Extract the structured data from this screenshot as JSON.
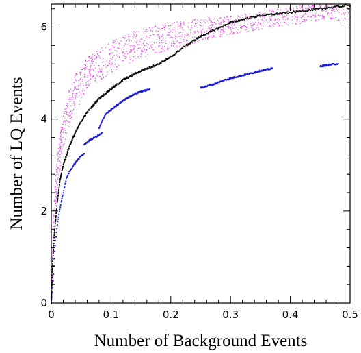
{
  "chart_data": {
    "type": "scatter",
    "title": "",
    "xlabel": "Number of Background Events",
    "ylabel": "Number of LQ Events",
    "xlim": [
      0,
      0.5
    ],
    "ylim": [
      0,
      6.5
    ],
    "x_ticks": [
      0,
      0.1,
      0.2,
      0.3,
      0.4,
      0.5
    ],
    "x_tick_labels": [
      "0",
      "0.1",
      "0.2",
      "0.3",
      "0.4",
      "0.5"
    ],
    "y_ticks": [
      0,
      2,
      4,
      6
    ],
    "y_tick_labels": [
      "0",
      "2",
      "4",
      "6"
    ],
    "grid": false,
    "legend": "none",
    "series": [
      {
        "color": "#e23be2",
        "style": "scattered dots (upper band)",
        "x": [
          0,
          0.002,
          0.005,
          0.01,
          0.015,
          0.02,
          0.03,
          0.04,
          0.05,
          0.06,
          0.07,
          0.08,
          0.1,
          0.12,
          0.15,
          0.18,
          0.2,
          0.25,
          0.3,
          0.35,
          0.4,
          0.45,
          0.5
        ],
        "y": [
          0.1,
          1.3,
          2.2,
          2.9,
          3.4,
          3.8,
          4.3,
          4.6,
          4.8,
          5.0,
          5.1,
          5.2,
          5.35,
          5.5,
          5.65,
          5.75,
          5.82,
          5.95,
          6.05,
          6.15,
          6.25,
          6.35,
          6.4
        ],
        "y_spread": [
          0.05,
          0.3,
          0.35,
          0.4,
          0.4,
          0.4,
          0.4,
          0.4,
          0.4,
          0.35,
          0.35,
          0.35,
          0.35,
          0.35,
          0.3,
          0.3,
          0.3,
          0.25,
          0.2,
          0.2,
          0.2,
          0.2,
          0.25
        ]
      },
      {
        "color": "#000000",
        "style": "dense dotted curve",
        "x": [
          0,
          0.002,
          0.005,
          0.01,
          0.015,
          0.02,
          0.03,
          0.04,
          0.05,
          0.06,
          0.07,
          0.08,
          0.1,
          0.12,
          0.15,
          0.18,
          0.2,
          0.22,
          0.25,
          0.28,
          0.3,
          0.33,
          0.35,
          0.4,
          0.45,
          0.48,
          0.5
        ],
        "y": [
          0,
          0.8,
          1.5,
          2.2,
          2.7,
          3.0,
          3.4,
          3.7,
          3.95,
          4.15,
          4.3,
          4.45,
          4.65,
          4.85,
          5.05,
          5.2,
          5.35,
          5.55,
          5.8,
          5.98,
          6.1,
          6.2,
          6.25,
          6.32,
          6.4,
          6.45,
          6.47
        ]
      },
      {
        "color": "#1a1ad6",
        "style": "dotted segments",
        "segments": [
          {
            "x": [
              0,
              0.003,
              0.006,
              0.01,
              0.015,
              0.02,
              0.025,
              0.03,
              0.035,
              0.04,
              0.05,
              0.055
            ],
            "y": [
              0,
              0.5,
              1.2,
              1.7,
              2.1,
              2.4,
              2.7,
              2.85,
              2.95,
              3.05,
              3.2,
              3.25
            ]
          },
          {
            "x": [
              0.055,
              0.06,
              0.065,
              0.07,
              0.075,
              0.08,
              0.085
            ],
            "y": [
              3.45,
              3.5,
              3.55,
              3.58,
              3.62,
              3.65,
              3.7
            ]
          },
          {
            "x": [
              0.08,
              0.085,
              0.09,
              0.1,
              0.11,
              0.12,
              0.13,
              0.14,
              0.15,
              0.16,
              0.165
            ],
            "y": [
              3.8,
              3.95,
              4.1,
              4.2,
              4.3,
              4.4,
              4.48,
              4.55,
              4.6,
              4.63,
              4.65
            ]
          },
          {
            "x": [
              0.25,
              0.27,
              0.29,
              0.31,
              0.33,
              0.35,
              0.37
            ],
            "y": [
              4.68,
              4.75,
              4.85,
              4.92,
              4.98,
              5.05,
              5.1
            ]
          },
          {
            "x": [
              0.45,
              0.46,
              0.47,
              0.48
            ],
            "y": [
              5.15,
              5.17,
              5.19,
              5.2
            ]
          }
        ]
      }
    ]
  }
}
